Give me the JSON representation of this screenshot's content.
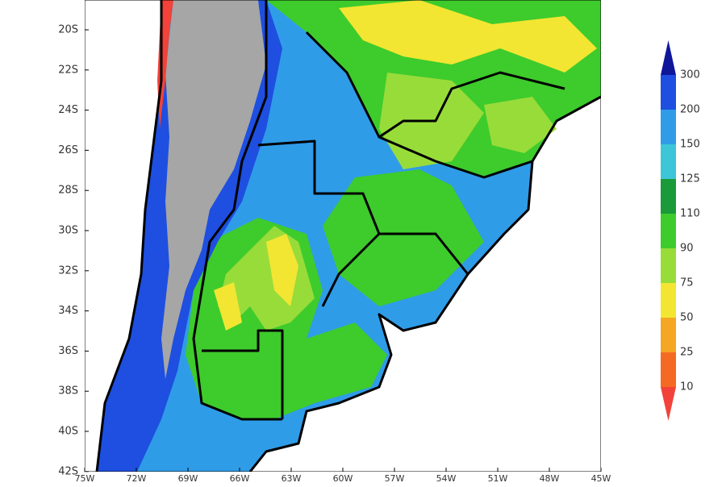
{
  "map": {
    "lat_labels": [
      "20S",
      "22S",
      "24S",
      "26S",
      "28S",
      "30S",
      "32S",
      "34S",
      "36S",
      "38S",
      "40S",
      "42S"
    ],
    "lon_labels": [
      "75W",
      "72W",
      "69W",
      "66W",
      "63W",
      "60W",
      "57W",
      "54W",
      "51W",
      "48W",
      "45W"
    ],
    "colorbar": {
      "labels": [
        300,
        200,
        150,
        125,
        110,
        90,
        75,
        50,
        25,
        10
      ],
      "colors": [
        "#10169a",
        "#1e4fe0",
        "#2f9ce8",
        "#3cc6d8",
        "#1a9a38",
        "#3ecb2c",
        "#98dc3a",
        "#f2e632",
        "#f5a623",
        "#f56a22",
        "#f2423a"
      ]
    }
  }
}
